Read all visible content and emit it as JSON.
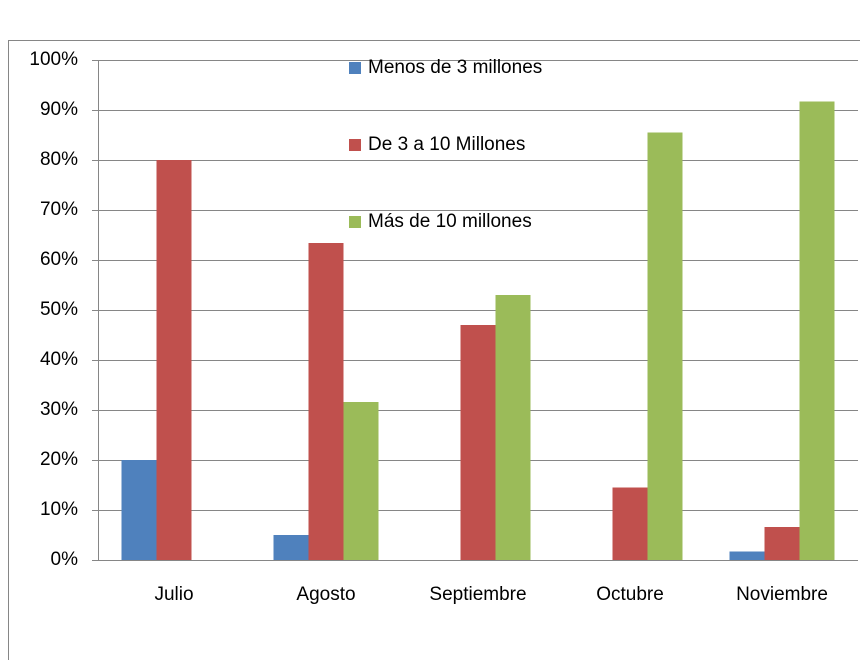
{
  "chart_data": {
    "type": "bar",
    "categories": [
      "Julio",
      "Agosto",
      "Septiembre",
      "Octubre",
      "Noviembre"
    ],
    "series": [
      {
        "name": "Menos de 3 millones",
        "color": "#4f81bd",
        "values": [
          20,
          5,
          0,
          0,
          1.7
        ]
      },
      {
        "name": "De 3 a 10 Millones",
        "color": "#c0504d",
        "values": [
          80,
          63.4,
          47,
          14.5,
          6.6
        ]
      },
      {
        "name": "Más de 10 millones",
        "color": "#9bbb59",
        "values": [
          0,
          31.6,
          53,
          85.5,
          91.7
        ]
      }
    ],
    "ylim": [
      0,
      100
    ],
    "yticks": [
      {
        "value": 0,
        "label": "0%"
      },
      {
        "value": 10,
        "label": "10%"
      },
      {
        "value": 20,
        "label": "20%"
      },
      {
        "value": 30,
        "label": "30%"
      },
      {
        "value": 40,
        "label": "40%"
      },
      {
        "value": 50,
        "label": "50%"
      },
      {
        "value": 60,
        "label": "60%"
      },
      {
        "value": 70,
        "label": "70%"
      },
      {
        "value": 80,
        "label": "80%"
      },
      {
        "value": 90,
        "label": "90%"
      },
      {
        "value": 100,
        "label": "100%"
      }
    ],
    "grid": true
  }
}
